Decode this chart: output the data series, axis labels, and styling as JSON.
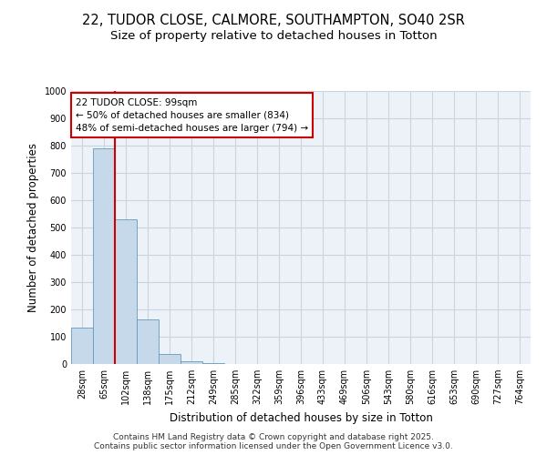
{
  "title_line1": "22, TUDOR CLOSE, CALMORE, SOUTHAMPTON, SO40 2SR",
  "title_line2": "Size of property relative to detached houses in Totton",
  "xlabel": "Distribution of detached houses by size in Totton",
  "ylabel": "Number of detached properties",
  "categories": [
    "28sqm",
    "65sqm",
    "102sqm",
    "138sqm",
    "175sqm",
    "212sqm",
    "249sqm",
    "285sqm",
    "322sqm",
    "359sqm",
    "396sqm",
    "433sqm",
    "469sqm",
    "506sqm",
    "543sqm",
    "580sqm",
    "616sqm",
    "653sqm",
    "690sqm",
    "727sqm",
    "764sqm"
  ],
  "values": [
    134,
    790,
    530,
    163,
    37,
    10,
    2,
    0,
    0,
    0,
    0,
    0,
    0,
    0,
    0,
    0,
    0,
    0,
    0,
    0,
    0
  ],
  "bar_color": "#c6d9ea",
  "bar_edge_color": "#6699bb",
  "vline_color": "#cc0000",
  "annotation_text": "22 TUDOR CLOSE: 99sqm\n← 50% of detached houses are smaller (834)\n48% of semi-detached houses are larger (794) →",
  "annotation_box_edgecolor": "#cc0000",
  "ylim": [
    0,
    1000
  ],
  "yticks": [
    0,
    100,
    200,
    300,
    400,
    500,
    600,
    700,
    800,
    900,
    1000
  ],
  "grid_color": "#c8d4e0",
  "background_color": "#edf2f8",
  "footer_text": "Contains HM Land Registry data © Crown copyright and database right 2025.\nContains public sector information licensed under the Open Government Licence v3.0.",
  "title_fontsize": 10.5,
  "subtitle_fontsize": 9.5,
  "tick_fontsize": 7,
  "label_fontsize": 8.5,
  "footer_fontsize": 6.5
}
